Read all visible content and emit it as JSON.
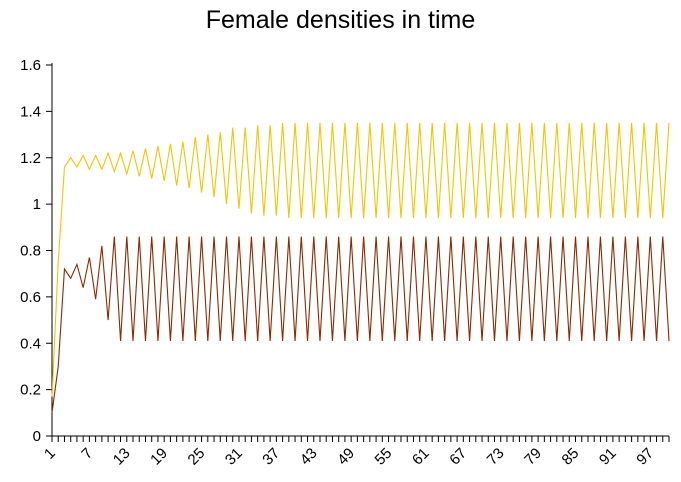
{
  "chart_data": {
    "type": "line",
    "title": "Female densities in time",
    "xlabel": "",
    "ylabel": "",
    "ylim": [
      0,
      1.6
    ],
    "yticks": [
      "0",
      "0.2",
      "0.4",
      "0.6",
      "0.8",
      "1",
      "1.2",
      "1.4",
      "1.6"
    ],
    "xtick_labels": [
      "1",
      "7",
      "13",
      "19",
      "25",
      "31",
      "37",
      "43",
      "49",
      "55",
      "61",
      "67",
      "73",
      "79",
      "85",
      "91",
      "97"
    ],
    "x_count": 100,
    "grid": false,
    "legend": "none",
    "series": [
      {
        "color": "#f2c500",
        "values": [
          0.17,
          0.75,
          1.16,
          1.2,
          1.16,
          1.21,
          1.15,
          1.21,
          1.15,
          1.22,
          1.14,
          1.22,
          1.13,
          1.23,
          1.12,
          1.24,
          1.11,
          1.25,
          1.1,
          1.26,
          1.08,
          1.27,
          1.07,
          1.29,
          1.05,
          1.3,
          1.03,
          1.31,
          1.0,
          1.33,
          0.98,
          1.33,
          0.96,
          1.34,
          0.95,
          1.34,
          0.95,
          1.35,
          0.94,
          1.35,
          0.94,
          1.35,
          0.94,
          1.35,
          0.94,
          1.35,
          0.94,
          1.35,
          0.94,
          1.35,
          0.94,
          1.35,
          0.94,
          1.35,
          0.94,
          1.35,
          0.94,
          1.35,
          0.94,
          1.35,
          0.94,
          1.35,
          0.94,
          1.35,
          0.94,
          1.35,
          0.94,
          1.35,
          0.94,
          1.35,
          0.94,
          1.35,
          0.94,
          1.35,
          0.94,
          1.35,
          0.94,
          1.35,
          0.94,
          1.35,
          0.94,
          1.35,
          0.94,
          1.35,
          0.94,
          1.35,
          0.94,
          1.35,
          0.94,
          1.35,
          0.94,
          1.35,
          0.94,
          1.35,
          0.94,
          1.35,
          0.94,
          1.35,
          0.94,
          1.35
        ]
      },
      {
        "color": "#8b2a00",
        "values": [
          0.1,
          0.3,
          0.72,
          0.68,
          0.74,
          0.64,
          0.77,
          0.59,
          0.82,
          0.5,
          0.86,
          0.41,
          0.86,
          0.41,
          0.86,
          0.41,
          0.86,
          0.41,
          0.86,
          0.41,
          0.86,
          0.41,
          0.86,
          0.41,
          0.86,
          0.41,
          0.86,
          0.41,
          0.86,
          0.41,
          0.86,
          0.41,
          0.86,
          0.41,
          0.86,
          0.41,
          0.86,
          0.41,
          0.86,
          0.41,
          0.86,
          0.41,
          0.86,
          0.41,
          0.86,
          0.41,
          0.86,
          0.41,
          0.86,
          0.41,
          0.86,
          0.41,
          0.86,
          0.41,
          0.86,
          0.41,
          0.86,
          0.41,
          0.86,
          0.41,
          0.86,
          0.41,
          0.86,
          0.41,
          0.86,
          0.41,
          0.86,
          0.41,
          0.86,
          0.41,
          0.86,
          0.41,
          0.86,
          0.41,
          0.86,
          0.41,
          0.86,
          0.41,
          0.86,
          0.41,
          0.86,
          0.41,
          0.86,
          0.41,
          0.86,
          0.41,
          0.86,
          0.41,
          0.86,
          0.41,
          0.86,
          0.41,
          0.86,
          0.41,
          0.86,
          0.41,
          0.86,
          0.41,
          0.86,
          0.41
        ]
      }
    ]
  }
}
